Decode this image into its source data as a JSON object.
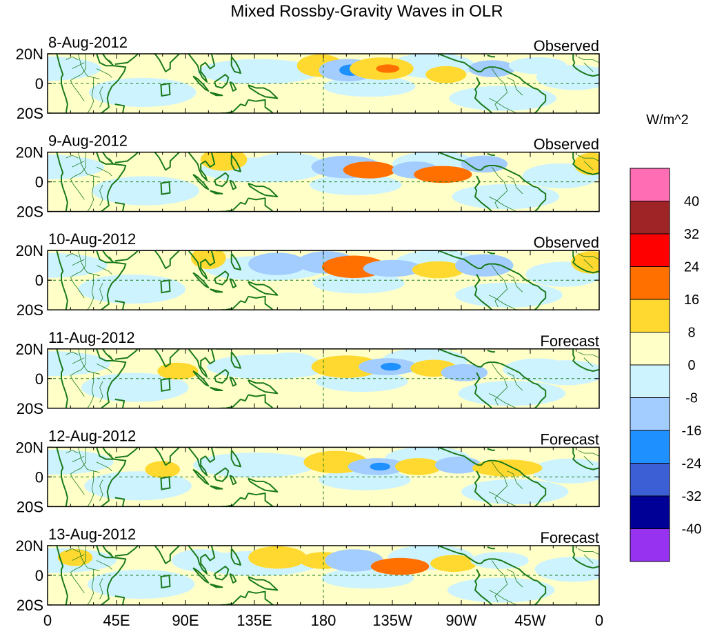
{
  "chart_data": {
    "type": "heatmap",
    "title": "Mixed Rossby-Gravity Waves in OLR",
    "colorbar": {
      "units": "W/m^2",
      "tick_labels": [
        "40",
        "32",
        "24",
        "16",
        "8",
        "0",
        "-8",
        "-16",
        "-24",
        "-32",
        "-40"
      ],
      "bins": [
        {
          "color": "#ff6eb4"
        },
        {
          "color": "#9e2426"
        },
        {
          "color": "#ff0000"
        },
        {
          "color": "#ff7000"
        },
        {
          "color": "#ffd930"
        },
        {
          "color": "#ffffc8"
        },
        {
          "color": "#cdf3ff"
        },
        {
          "color": "#a3cdff"
        },
        {
          "color": "#1e90ff"
        },
        {
          "color": "#3c5fd6"
        },
        {
          "color": "#000096"
        },
        {
          "color": "#9632f0"
        }
      ]
    },
    "x_ticks": [
      {
        "lon": 0,
        "label": "0"
      },
      {
        "lon": 45,
        "label": "45E"
      },
      {
        "lon": 90,
        "label": "90E"
      },
      {
        "lon": 135,
        "label": "135E"
      },
      {
        "lon": 180,
        "label": "180"
      },
      {
        "lon": 225,
        "label": "135W"
      },
      {
        "lon": 270,
        "label": "90W"
      },
      {
        "lon": 315,
        "label": "45W"
      },
      {
        "lon": 360,
        "label": "0"
      }
    ],
    "y_ticks": [
      {
        "lat": 20,
        "label": "20N"
      },
      {
        "lat": 0,
        "label": "0"
      },
      {
        "lat": -20,
        "label": "20S"
      }
    ],
    "xlim": [
      0,
      360
    ],
    "ylim": [
      -20,
      20
    ],
    "panels": [
      {
        "date": "8-Aug-2012",
        "status": "Observed",
        "anomalies": [
          {
            "lon": 178,
            "lat": 12,
            "value": 10,
            "sx": 8,
            "sy": 4
          },
          {
            "lon": 196,
            "lat": 9,
            "value": -14,
            "sx": 10,
            "sy": 4
          },
          {
            "lon": 198,
            "lat": 9,
            "value": -18,
            "sx": 4,
            "sy": 2
          },
          {
            "lon": 218,
            "lat": 10,
            "value": 12,
            "sx": 11,
            "sy": 4
          },
          {
            "lon": 222,
            "lat": 10,
            "value": 17,
            "sx": 4,
            "sy": 1.5
          },
          {
            "lon": 260,
            "lat": 6,
            "value": 10,
            "sx": 7,
            "sy": 3
          },
          {
            "lon": 290,
            "lat": 10,
            "value": -9,
            "sx": 8,
            "sy": 3
          },
          {
            "lon": 320,
            "lat": 12,
            "value": -7,
            "sx": 10,
            "sy": 3
          }
        ]
      },
      {
        "date": "9-Aug-2012",
        "status": "Observed",
        "anomalies": [
          {
            "lon": 115,
            "lat": 15,
            "value": 10,
            "sx": 8,
            "sy": 4
          },
          {
            "lon": 157,
            "lat": 12,
            "value": -8,
            "sx": 12,
            "sy": 4
          },
          {
            "lon": 195,
            "lat": 10,
            "value": -12,
            "sx": 12,
            "sy": 4
          },
          {
            "lon": 210,
            "lat": 8,
            "value": 18,
            "sx": 9,
            "sy": 3
          },
          {
            "lon": 212,
            "lat": 8,
            "value": 22,
            "sx": 3.5,
            "sy": 1.4
          },
          {
            "lon": 240,
            "lat": 8,
            "value": -9,
            "sx": 8,
            "sy": 3
          },
          {
            "lon": 258,
            "lat": 5,
            "value": 16,
            "sx": 10,
            "sy": 3
          },
          {
            "lon": 260,
            "lat": 5,
            "value": 22,
            "sx": 3.5,
            "sy": 1.4
          },
          {
            "lon": 285,
            "lat": 12,
            "value": -10,
            "sx": 8,
            "sy": 3
          },
          {
            "lon": 355,
            "lat": 12,
            "value": 9,
            "sx": 6,
            "sy": 4
          }
        ]
      },
      {
        "date": "10-Aug-2012",
        "status": "Observed",
        "anomalies": [
          {
            "lon": 105,
            "lat": 15,
            "value": 10,
            "sx": 6,
            "sy": 4
          },
          {
            "lon": 150,
            "lat": 11,
            "value": -9,
            "sx": 10,
            "sy": 4
          },
          {
            "lon": 182,
            "lat": 12,
            "value": -10,
            "sx": 10,
            "sy": 4
          },
          {
            "lon": 200,
            "lat": 9,
            "value": 16,
            "sx": 11,
            "sy": 4
          },
          {
            "lon": 202,
            "lat": 9,
            "value": 22,
            "sx": 4,
            "sy": 1.6
          },
          {
            "lon": 225,
            "lat": 8,
            "value": -10,
            "sx": 10,
            "sy": 3
          },
          {
            "lon": 255,
            "lat": 7,
            "value": 10,
            "sx": 9,
            "sy": 3
          },
          {
            "lon": 285,
            "lat": 10,
            "value": -10,
            "sx": 10,
            "sy": 4
          },
          {
            "lon": 355,
            "lat": 12,
            "value": 9,
            "sx": 7,
            "sy": 4
          }
        ]
      },
      {
        "date": "11-Aug-2012",
        "status": "Forecast",
        "anomalies": [
          {
            "lon": 85,
            "lat": 5,
            "value": 10,
            "sx": 7,
            "sy": 3
          },
          {
            "lon": 158,
            "lat": 10,
            "value": -8,
            "sx": 10,
            "sy": 4
          },
          {
            "lon": 195,
            "lat": 8,
            "value": 12,
            "sx": 12,
            "sy": 4
          },
          {
            "lon": 222,
            "lat": 8,
            "value": -16,
            "sx": 10,
            "sy": 3
          },
          {
            "lon": 224,
            "lat": 8,
            "value": -22,
            "sx": 3.5,
            "sy": 1.4
          },
          {
            "lon": 252,
            "lat": 7,
            "value": 10,
            "sx": 8,
            "sy": 3
          },
          {
            "lon": 272,
            "lat": 4,
            "value": -14,
            "sx": 8,
            "sy": 3
          },
          {
            "lon": 320,
            "lat": 6,
            "value": -8,
            "sx": 12,
            "sy": 4
          }
        ]
      },
      {
        "date": "12-Aug-2012",
        "status": "Forecast",
        "anomalies": [
          {
            "lon": 75,
            "lat": 5,
            "value": 9,
            "sx": 6,
            "sy": 3
          },
          {
            "lon": 188,
            "lat": 10,
            "value": 12,
            "sx": 11,
            "sy": 4
          },
          {
            "lon": 215,
            "lat": 7,
            "value": -16,
            "sx": 10,
            "sy": 3
          },
          {
            "lon": 217,
            "lat": 7,
            "value": -22,
            "sx": 3.5,
            "sy": 1.4
          },
          {
            "lon": 242,
            "lat": 7,
            "value": 10,
            "sx": 8,
            "sy": 3
          },
          {
            "lon": 268,
            "lat": 8,
            "value": -10,
            "sx": 8,
            "sy": 3
          },
          {
            "lon": 300,
            "lat": 6,
            "value": 9,
            "sx": 12,
            "sy": 3
          }
        ]
      },
      {
        "date": "13-Aug-2012",
        "status": "Forecast",
        "anomalies": [
          {
            "lon": 18,
            "lat": 12,
            "value": 9,
            "sx": 6,
            "sy": 3
          },
          {
            "lon": 100,
            "lat": 10,
            "value": -8,
            "sx": 10,
            "sy": 4
          },
          {
            "lon": 150,
            "lat": 12,
            "value": 8,
            "sx": 10,
            "sy": 4
          },
          {
            "lon": 180,
            "lat": 10,
            "value": 9,
            "sx": 8,
            "sy": 3
          },
          {
            "lon": 200,
            "lat": 10,
            "value": -12,
            "sx": 10,
            "sy": 4
          },
          {
            "lon": 230,
            "lat": 6,
            "value": 16,
            "sx": 10,
            "sy": 3
          },
          {
            "lon": 232,
            "lat": 6,
            "value": 22,
            "sx": 3.5,
            "sy": 1.4
          },
          {
            "lon": 265,
            "lat": 8,
            "value": 9,
            "sx": 8,
            "sy": 3
          },
          {
            "lon": 295,
            "lat": 10,
            "value": -8,
            "sx": 10,
            "sy": 3
          }
        ]
      }
    ]
  }
}
